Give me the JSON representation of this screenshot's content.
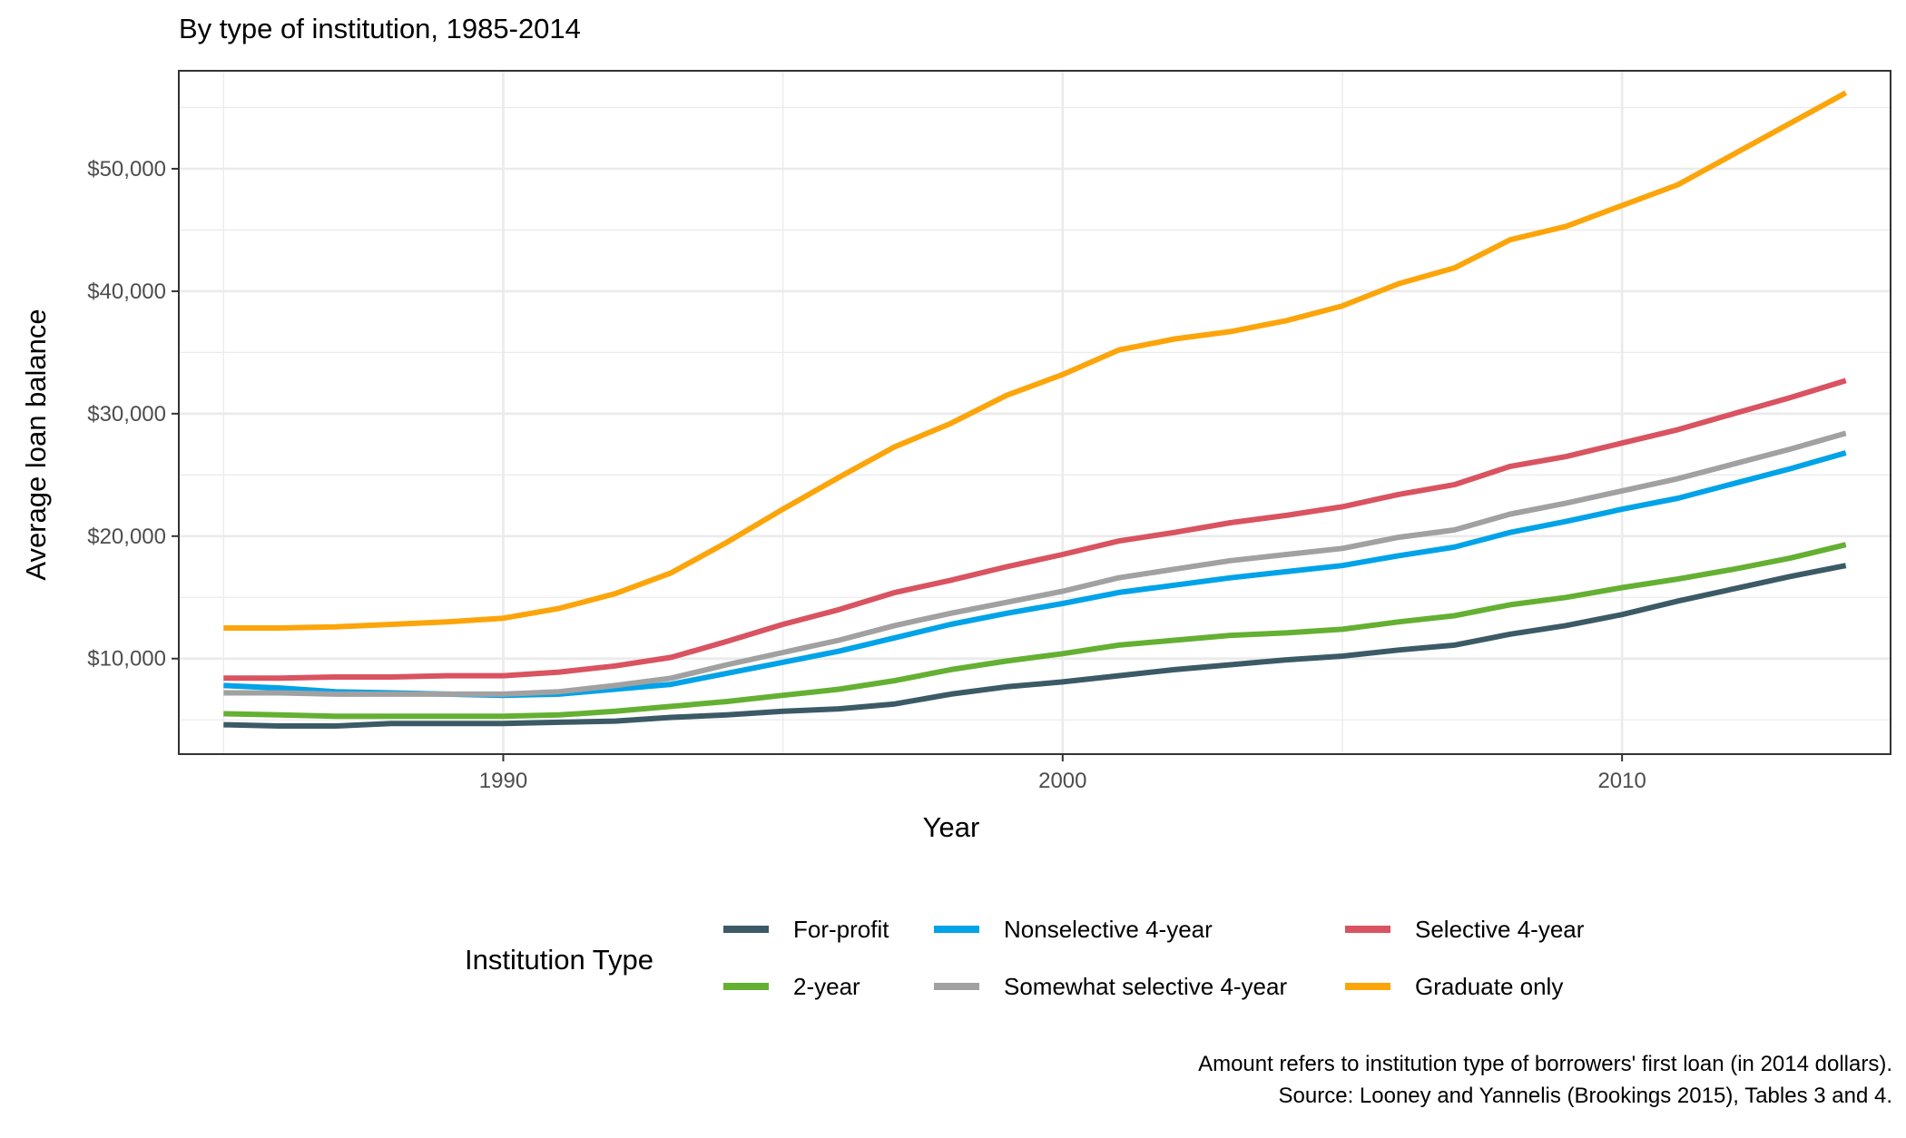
{
  "chart_data": {
    "type": "line",
    "title": "By type of institution, 1985-2014",
    "xlabel": "Year",
    "ylabel": "Average loan balance",
    "xlim": [
      1984.2,
      2014.8
    ],
    "ylim": [
      2200,
      58000
    ],
    "x_ticks": [
      1990,
      2000,
      2010
    ],
    "x_tick_labels": [
      "1990",
      "2000",
      "2010"
    ],
    "y_ticks": [
      10000,
      20000,
      30000,
      40000,
      50000
    ],
    "y_tick_labels": [
      "$10,000",
      "$20,000",
      "$30,000",
      "$40,000",
      "$50,000"
    ],
    "x_minor": [
      1985,
      1995,
      2005,
      2015
    ],
    "y_minor": [
      5000,
      15000,
      25000,
      35000,
      45000,
      55000
    ],
    "grid": true,
    "x": [
      1985,
      1986,
      1987,
      1988,
      1989,
      1990,
      1991,
      1992,
      1993,
      1994,
      1995,
      1996,
      1997,
      1998,
      1999,
      2000,
      2001,
      2002,
      2003,
      2004,
      2005,
      2006,
      2007,
      2008,
      2009,
      2010,
      2011,
      2012,
      2013,
      2014
    ],
    "series": [
      {
        "name": "For-profit",
        "color": "#3b5a66",
        "values": [
          4600,
          4500,
          4500,
          4700,
          4700,
          4700,
          4800,
          4900,
          5200,
          5400,
          5700,
          5900,
          6300,
          7100,
          7700,
          8100,
          8600,
          9100,
          9500,
          9900,
          10200,
          10700,
          11100,
          12000,
          12700,
          13600,
          14700,
          15700,
          16700,
          17600
        ]
      },
      {
        "name": "2-year",
        "color": "#64b032",
        "values": [
          5500,
          5400,
          5300,
          5300,
          5300,
          5300,
          5400,
          5700,
          6100,
          6500,
          7000,
          7500,
          8200,
          9100,
          9800,
          10400,
          11100,
          11500,
          11900,
          12100,
          12400,
          13000,
          13500,
          14400,
          15000,
          15800,
          16500,
          17300,
          18200,
          19300
        ]
      },
      {
        "name": "Nonselective 4-year",
        "color": "#00a3e8",
        "values": [
          7800,
          7600,
          7300,
          7200,
          7100,
          7000,
          7100,
          7500,
          7900,
          8800,
          9700,
          10600,
          11700,
          12800,
          13700,
          14500,
          15400,
          16000,
          16600,
          17100,
          17600,
          18400,
          19100,
          20300,
          21200,
          22200,
          23100,
          24300,
          25500,
          26800
        ]
      },
      {
        "name": "Somewhat selective 4-year",
        "color": "#a1a1a1",
        "values": [
          7200,
          7200,
          7100,
          7100,
          7100,
          7100,
          7300,
          7800,
          8400,
          9500,
          10500,
          11500,
          12700,
          13700,
          14600,
          15500,
          16600,
          17300,
          18000,
          18500,
          19000,
          19900,
          20500,
          21800,
          22700,
          23700,
          24700,
          25900,
          27100,
          28400
        ]
      },
      {
        "name": "Selective 4-year",
        "color": "#d95360",
        "values": [
          8400,
          8400,
          8500,
          8500,
          8600,
          8600,
          8900,
          9400,
          10100,
          11400,
          12800,
          14000,
          15400,
          16400,
          17500,
          18500,
          19600,
          20300,
          21100,
          21700,
          22400,
          23400,
          24200,
          25700,
          26500,
          27600,
          28700,
          30000,
          31300,
          32700
        ]
      },
      {
        "name": "Graduate only",
        "color": "#fca50a",
        "values": [
          12500,
          12500,
          12600,
          12800,
          13000,
          13300,
          14100,
          15300,
          17000,
          19500,
          22200,
          24800,
          27300,
          29200,
          31500,
          33200,
          35200,
          36100,
          36700,
          37600,
          38800,
          40600,
          41900,
          44200,
          45300,
          47000,
          48700,
          51200,
          53700,
          56200
        ]
      }
    ],
    "legend": {
      "title": "Institution Type",
      "placement": "bottom",
      "rows": [
        [
          "For-profit",
          "Nonselective 4-year",
          "Selective 4-year"
        ],
        [
          "2-year",
          "Somewhat selective 4-year",
          "Graduate only"
        ]
      ]
    },
    "caption": [
      "Amount refers to institution type of borrowers' first loan (in 2014 dollars).",
      "Source: Looney and Yannelis (Brookings 2015), Tables 3 and 4."
    ]
  }
}
